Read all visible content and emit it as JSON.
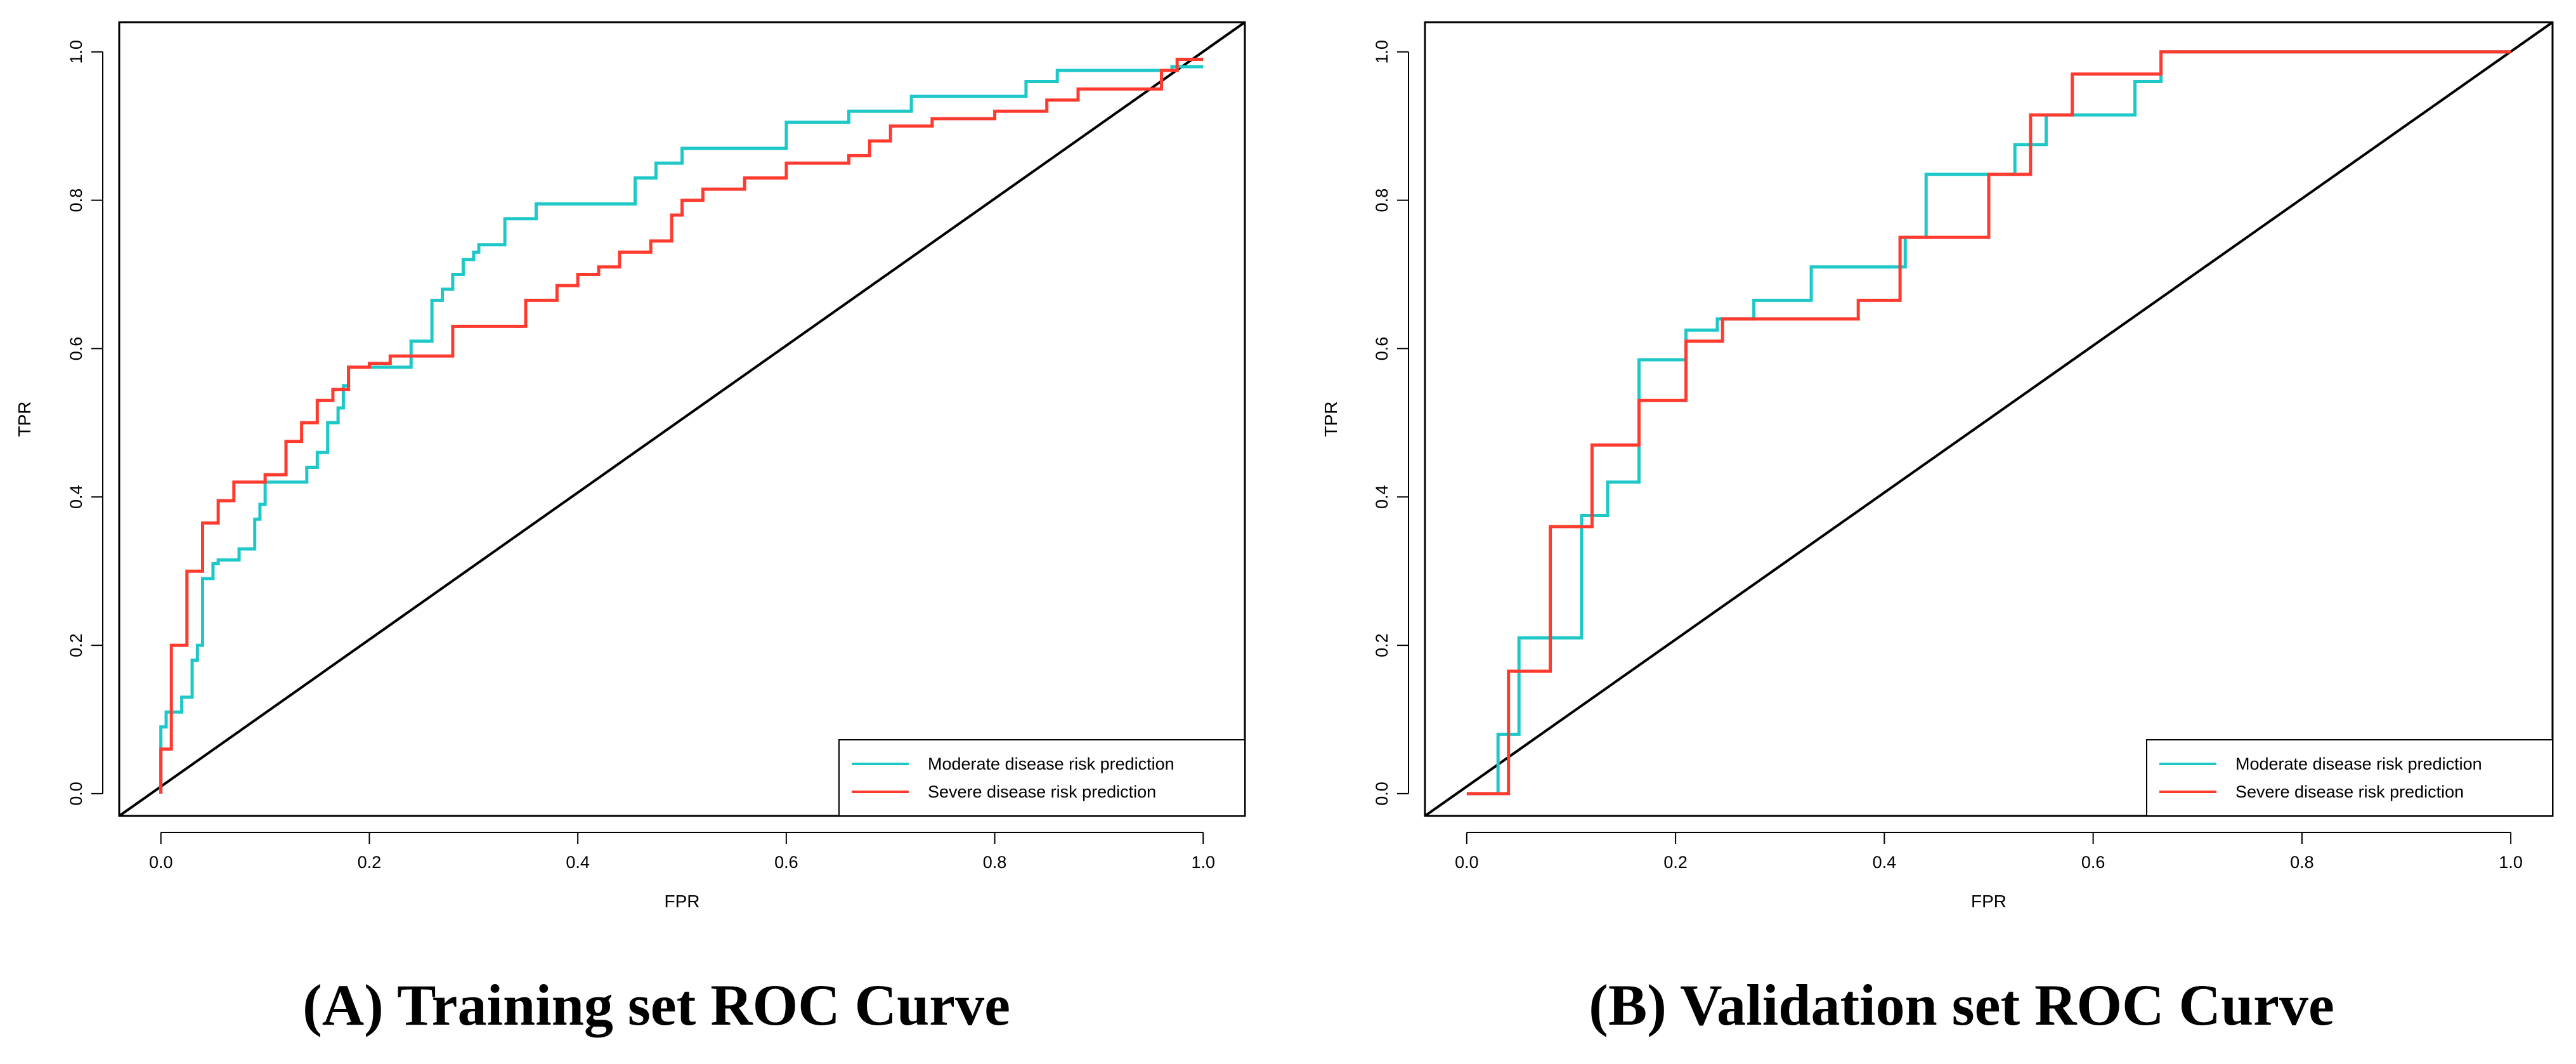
{
  "colors": {
    "moderate": "#1ec8c8",
    "severe": "#ff3b30",
    "diagonal": "#000000"
  },
  "chart_data": [
    {
      "type": "line",
      "caption": "(A)  Training set ROC Curve",
      "xlabel": "FPR",
      "ylabel": "TPR",
      "xlim": [
        -0.04,
        1.04
      ],
      "ylim": [
        -0.03,
        1.04
      ],
      "xticks": [
        "0.0",
        "0.2",
        "0.4",
        "0.6",
        "0.8",
        "1.0"
      ],
      "yticks": [
        "0.0",
        "0.2",
        "0.4",
        "0.6",
        "0.8",
        "1.0"
      ],
      "grid": false,
      "legend_position": "bottom-right",
      "reference_line": {
        "x": [
          0,
          1
        ],
        "y": [
          0,
          1
        ]
      },
      "series": [
        {
          "name": "Moderate disease risk prediction",
          "color_key": "moderate",
          "x": [
            0.0,
            0.0,
            0.005,
            0.005,
            0.02,
            0.02,
            0.03,
            0.03,
            0.035,
            0.035,
            0.04,
            0.04,
            0.05,
            0.05,
            0.055,
            0.055,
            0.075,
            0.075,
            0.09,
            0.09,
            0.095,
            0.095,
            0.1,
            0.1,
            0.14,
            0.14,
            0.15,
            0.15,
            0.16,
            0.16,
            0.17,
            0.17,
            0.175,
            0.175,
            0.18,
            0.18,
            0.24,
            0.24,
            0.26,
            0.26,
            0.27,
            0.27,
            0.28,
            0.28,
            0.29,
            0.29,
            0.3,
            0.3,
            0.305,
            0.305,
            0.33,
            0.33,
            0.36,
            0.36,
            0.455,
            0.455,
            0.475,
            0.475,
            0.5,
            0.5,
            0.6,
            0.6,
            0.66,
            0.66,
            0.72,
            0.72,
            0.83,
            0.83,
            0.86,
            0.86,
            0.97,
            0.97,
            1.0
          ],
          "y": [
            0.0,
            0.09,
            0.09,
            0.11,
            0.11,
            0.13,
            0.13,
            0.18,
            0.18,
            0.2,
            0.2,
            0.29,
            0.29,
            0.31,
            0.31,
            0.315,
            0.315,
            0.33,
            0.33,
            0.37,
            0.37,
            0.39,
            0.39,
            0.42,
            0.42,
            0.44,
            0.44,
            0.46,
            0.46,
            0.5,
            0.5,
            0.52,
            0.52,
            0.55,
            0.55,
            0.575,
            0.575,
            0.61,
            0.61,
            0.665,
            0.665,
            0.68,
            0.68,
            0.7,
            0.7,
            0.72,
            0.72,
            0.73,
            0.73,
            0.74,
            0.74,
            0.775,
            0.775,
            0.795,
            0.795,
            0.83,
            0.83,
            0.85,
            0.85,
            0.87,
            0.87,
            0.905,
            0.905,
            0.92,
            0.92,
            0.94,
            0.94,
            0.96,
            0.96,
            0.975,
            0.975,
            0.98,
            0.98
          ]
        },
        {
          "name": "Severe disease risk prediction",
          "color_key": "severe",
          "x": [
            0.0,
            0.0,
            0.01,
            0.01,
            0.025,
            0.025,
            0.04,
            0.04,
            0.055,
            0.055,
            0.07,
            0.07,
            0.1,
            0.1,
            0.12,
            0.12,
            0.135,
            0.135,
            0.15,
            0.15,
            0.165,
            0.165,
            0.18,
            0.18,
            0.2,
            0.2,
            0.22,
            0.22,
            0.28,
            0.28,
            0.35,
            0.35,
            0.38,
            0.38,
            0.4,
            0.4,
            0.42,
            0.42,
            0.44,
            0.44,
            0.47,
            0.47,
            0.49,
            0.49,
            0.5,
            0.5,
            0.52,
            0.52,
            0.56,
            0.56,
            0.6,
            0.6,
            0.66,
            0.66,
            0.68,
            0.68,
            0.7,
            0.7,
            0.74,
            0.74,
            0.8,
            0.8,
            0.85,
            0.85,
            0.88,
            0.88,
            0.96,
            0.96,
            0.975,
            0.975,
            1.0
          ],
          "y": [
            0.0,
            0.06,
            0.06,
            0.2,
            0.2,
            0.3,
            0.3,
            0.365,
            0.365,
            0.395,
            0.395,
            0.42,
            0.42,
            0.43,
            0.43,
            0.475,
            0.475,
            0.5,
            0.5,
            0.53,
            0.53,
            0.545,
            0.545,
            0.575,
            0.575,
            0.58,
            0.58,
            0.59,
            0.59,
            0.63,
            0.63,
            0.665,
            0.665,
            0.685,
            0.685,
            0.7,
            0.7,
            0.71,
            0.71,
            0.73,
            0.73,
            0.745,
            0.745,
            0.78,
            0.78,
            0.8,
            0.8,
            0.815,
            0.815,
            0.83,
            0.83,
            0.85,
            0.85,
            0.86,
            0.86,
            0.88,
            0.88,
            0.9,
            0.9,
            0.91,
            0.91,
            0.92,
            0.92,
            0.935,
            0.935,
            0.95,
            0.95,
            0.975,
            0.975,
            0.99,
            0.99
          ]
        }
      ],
      "legend": [
        "Moderate disease risk prediction",
        "Severe disease risk prediction"
      ]
    },
    {
      "type": "line",
      "caption": "(B)  Validation set ROC Curve",
      "xlabel": "FPR",
      "ylabel": "TPR",
      "xlim": [
        -0.04,
        1.04
      ],
      "ylim": [
        -0.03,
        1.04
      ],
      "xticks": [
        "0.0",
        "0.2",
        "0.4",
        "0.6",
        "0.8",
        "1.0"
      ],
      "yticks": [
        "0.0",
        "0.2",
        "0.4",
        "0.6",
        "0.8",
        "1.0"
      ],
      "grid": false,
      "legend_position": "bottom-right",
      "reference_line": {
        "x": [
          0,
          1
        ],
        "y": [
          0,
          1
        ]
      },
      "series": [
        {
          "name": "Moderate disease risk prediction",
          "color_key": "moderate",
          "x": [
            0.0,
            0.03,
            0.03,
            0.05,
            0.05,
            0.11,
            0.11,
            0.135,
            0.135,
            0.165,
            0.165,
            0.21,
            0.21,
            0.24,
            0.24,
            0.275,
            0.275,
            0.33,
            0.33,
            0.42,
            0.42,
            0.44,
            0.44,
            0.525,
            0.525,
            0.555,
            0.555,
            0.64,
            0.64,
            0.665,
            0.665,
            1.0
          ],
          "y": [
            0.0,
            0.0,
            0.08,
            0.08,
            0.21,
            0.21,
            0.375,
            0.375,
            0.42,
            0.42,
            0.585,
            0.585,
            0.625,
            0.625,
            0.64,
            0.64,
            0.665,
            0.665,
            0.71,
            0.71,
            0.75,
            0.75,
            0.835,
            0.835,
            0.875,
            0.875,
            0.915,
            0.915,
            0.96,
            0.96,
            1.0,
            1.0
          ]
        },
        {
          "name": "Severe disease risk prediction",
          "color_key": "severe",
          "x": [
            0.0,
            0.04,
            0.04,
            0.08,
            0.08,
            0.12,
            0.12,
            0.165,
            0.165,
            0.21,
            0.21,
            0.245,
            0.245,
            0.375,
            0.375,
            0.415,
            0.415,
            0.5,
            0.5,
            0.54,
            0.54,
            0.58,
            0.58,
            0.665,
            0.665,
            1.0
          ],
          "y": [
            0.0,
            0.0,
            0.165,
            0.165,
            0.36,
            0.36,
            0.47,
            0.47,
            0.53,
            0.53,
            0.61,
            0.61,
            0.64,
            0.64,
            0.665,
            0.665,
            0.75,
            0.75,
            0.835,
            0.835,
            0.915,
            0.915,
            0.97,
            0.97,
            1.0,
            1.0
          ]
        }
      ],
      "legend": [
        "Moderate disease risk prediction",
        "Severe disease risk prediction"
      ]
    }
  ]
}
